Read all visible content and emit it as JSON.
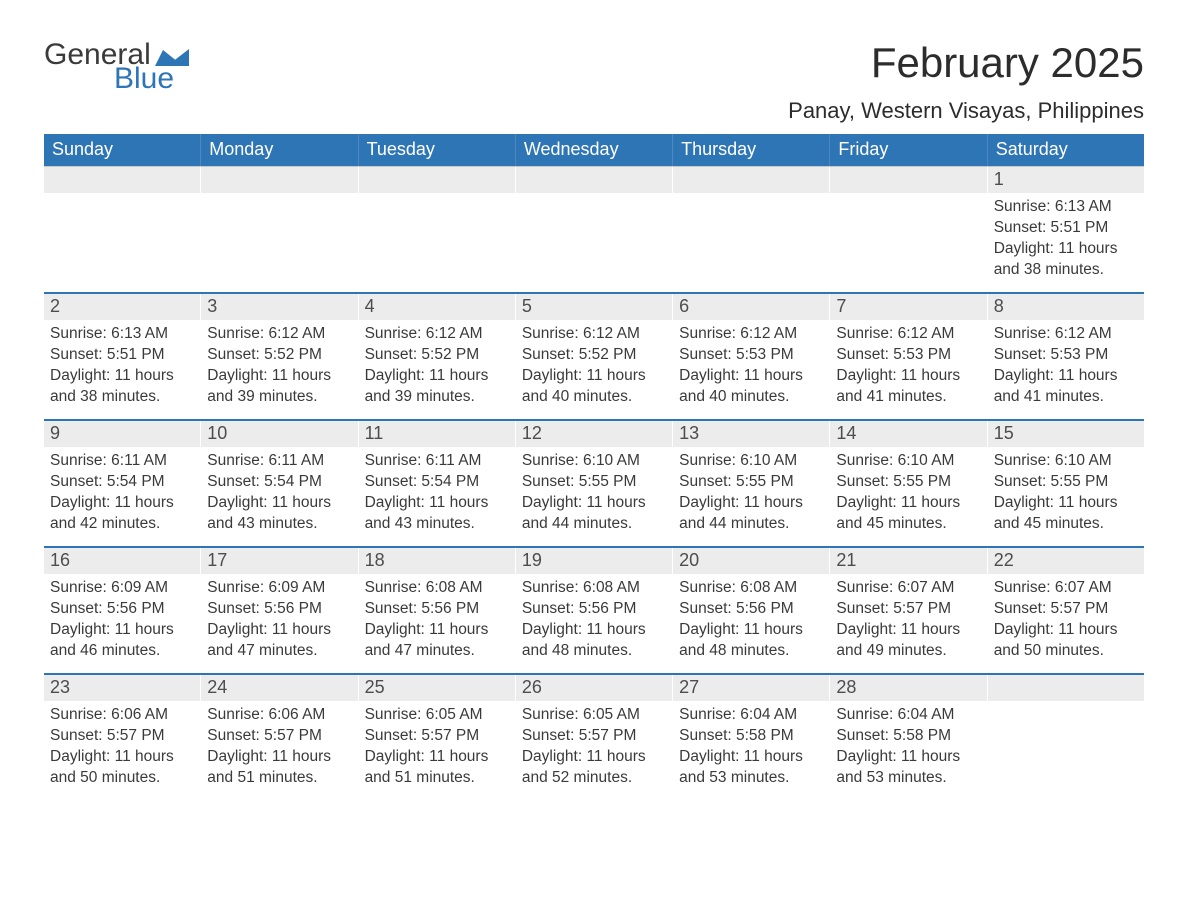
{
  "brand": {
    "word1": "General",
    "word2": "Blue",
    "mark_color": "#2e75b6"
  },
  "title": "February 2025",
  "location": "Panay, Western Visayas, Philippines",
  "colors": {
    "header_blue": "#2e75b6",
    "grey_bg": "#ececec",
    "text": "#3a3a3a",
    "background": "#ffffff"
  },
  "typography": {
    "title_fontsize": 42,
    "location_fontsize": 22,
    "dow_fontsize": 18,
    "daynum_fontsize": 18,
    "body_fontsize": 15.5,
    "font_family": "Arial"
  },
  "days_of_week": [
    "Sunday",
    "Monday",
    "Tuesday",
    "Wednesday",
    "Thursday",
    "Friday",
    "Saturday"
  ],
  "calendar": {
    "first_weekday_index": 6,
    "days": [
      {
        "n": 1,
        "sunrise": "6:13 AM",
        "sunset": "5:51 PM",
        "daylight": "11 hours and 38 minutes."
      },
      {
        "n": 2,
        "sunrise": "6:13 AM",
        "sunset": "5:51 PM",
        "daylight": "11 hours and 38 minutes."
      },
      {
        "n": 3,
        "sunrise": "6:12 AM",
        "sunset": "5:52 PM",
        "daylight": "11 hours and 39 minutes."
      },
      {
        "n": 4,
        "sunrise": "6:12 AM",
        "sunset": "5:52 PM",
        "daylight": "11 hours and 39 minutes."
      },
      {
        "n": 5,
        "sunrise": "6:12 AM",
        "sunset": "5:52 PM",
        "daylight": "11 hours and 40 minutes."
      },
      {
        "n": 6,
        "sunrise": "6:12 AM",
        "sunset": "5:53 PM",
        "daylight": "11 hours and 40 minutes."
      },
      {
        "n": 7,
        "sunrise": "6:12 AM",
        "sunset": "5:53 PM",
        "daylight": "11 hours and 41 minutes."
      },
      {
        "n": 8,
        "sunrise": "6:12 AM",
        "sunset": "5:53 PM",
        "daylight": "11 hours and 41 minutes."
      },
      {
        "n": 9,
        "sunrise": "6:11 AM",
        "sunset": "5:54 PM",
        "daylight": "11 hours and 42 minutes."
      },
      {
        "n": 10,
        "sunrise": "6:11 AM",
        "sunset": "5:54 PM",
        "daylight": "11 hours and 43 minutes."
      },
      {
        "n": 11,
        "sunrise": "6:11 AM",
        "sunset": "5:54 PM",
        "daylight": "11 hours and 43 minutes."
      },
      {
        "n": 12,
        "sunrise": "6:10 AM",
        "sunset": "5:55 PM",
        "daylight": "11 hours and 44 minutes."
      },
      {
        "n": 13,
        "sunrise": "6:10 AM",
        "sunset": "5:55 PM",
        "daylight": "11 hours and 44 minutes."
      },
      {
        "n": 14,
        "sunrise": "6:10 AM",
        "sunset": "5:55 PM",
        "daylight": "11 hours and 45 minutes."
      },
      {
        "n": 15,
        "sunrise": "6:10 AM",
        "sunset": "5:55 PM",
        "daylight": "11 hours and 45 minutes."
      },
      {
        "n": 16,
        "sunrise": "6:09 AM",
        "sunset": "5:56 PM",
        "daylight": "11 hours and 46 minutes."
      },
      {
        "n": 17,
        "sunrise": "6:09 AM",
        "sunset": "5:56 PM",
        "daylight": "11 hours and 47 minutes."
      },
      {
        "n": 18,
        "sunrise": "6:08 AM",
        "sunset": "5:56 PM",
        "daylight": "11 hours and 47 minutes."
      },
      {
        "n": 19,
        "sunrise": "6:08 AM",
        "sunset": "5:56 PM",
        "daylight": "11 hours and 48 minutes."
      },
      {
        "n": 20,
        "sunrise": "6:08 AM",
        "sunset": "5:56 PM",
        "daylight": "11 hours and 48 minutes."
      },
      {
        "n": 21,
        "sunrise": "6:07 AM",
        "sunset": "5:57 PM",
        "daylight": "11 hours and 49 minutes."
      },
      {
        "n": 22,
        "sunrise": "6:07 AM",
        "sunset": "5:57 PM",
        "daylight": "11 hours and 50 minutes."
      },
      {
        "n": 23,
        "sunrise": "6:06 AM",
        "sunset": "5:57 PM",
        "daylight": "11 hours and 50 minutes."
      },
      {
        "n": 24,
        "sunrise": "6:06 AM",
        "sunset": "5:57 PM",
        "daylight": "11 hours and 51 minutes."
      },
      {
        "n": 25,
        "sunrise": "6:05 AM",
        "sunset": "5:57 PM",
        "daylight": "11 hours and 51 minutes."
      },
      {
        "n": 26,
        "sunrise": "6:05 AM",
        "sunset": "5:57 PM",
        "daylight": "11 hours and 52 minutes."
      },
      {
        "n": 27,
        "sunrise": "6:04 AM",
        "sunset": "5:58 PM",
        "daylight": "11 hours and 53 minutes."
      },
      {
        "n": 28,
        "sunrise": "6:04 AM",
        "sunset": "5:58 PM",
        "daylight": "11 hours and 53 minutes."
      }
    ]
  },
  "labels": {
    "sunrise_prefix": "Sunrise: ",
    "sunset_prefix": "Sunset: ",
    "daylight_prefix": "Daylight: "
  }
}
